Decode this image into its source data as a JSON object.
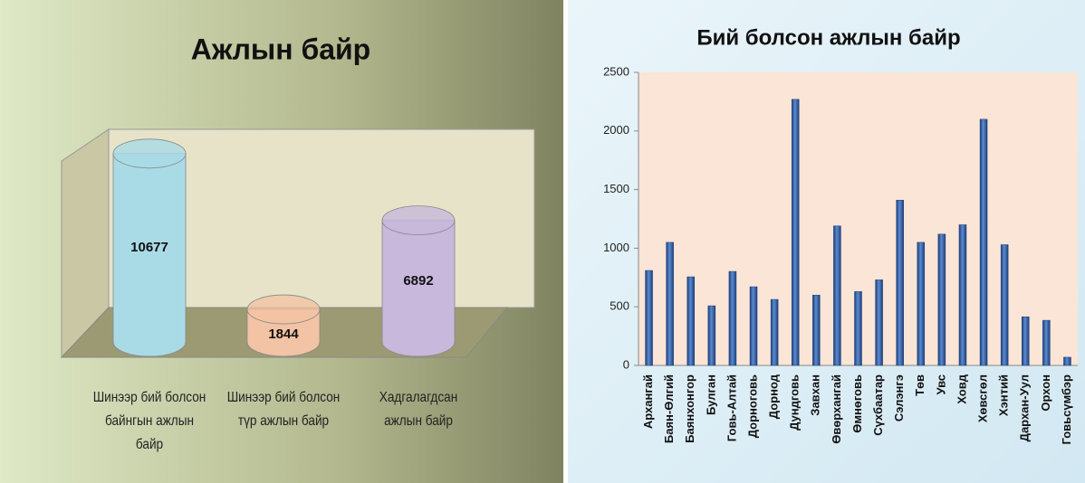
{
  "chart_data": [
    {
      "type": "cylinder",
      "title": "Ажлын байр",
      "categories": [
        "Шинээр бий болсон байнгын ажлын байр",
        "Шинээр бий болсон түр ажлын байр",
        "Хадгалагдсан ажлын байр"
      ],
      "values": [
        10677,
        1844,
        6892
      ],
      "colors": [
        "#a9dbe6",
        "#f2c3a4",
        "#c7b8dc"
      ]
    },
    {
      "type": "bar",
      "title": "Бий болсон ажлын байр",
      "categories": [
        "Архангай",
        "Баян-Өлгий",
        "Баянхонгор",
        "Булган",
        "Говь-Алтай",
        "Дорноговь",
        "Дорнод",
        "Дундговь",
        "Завхан",
        "Өвөрхангай",
        "Өмнөговь",
        "Сүхбаатар",
        "Сэлэнгэ",
        "Төв",
        "Увс",
        "Ховд",
        "Хөвсгөл",
        "Хэнтий",
        "Дархан-Уул",
        "Орхон",
        "Говьсүмбэр"
      ],
      "values": [
        810,
        1050,
        756,
        509,
        802,
        671,
        563,
        2270,
        600,
        1190,
        630,
        730,
        1410,
        1050,
        1120,
        1200,
        2100,
        1030,
        415,
        385,
        70
      ],
      "color": "#2f5da3",
      "ylim": [
        0,
        2500
      ],
      "yticks": [
        0,
        500,
        1000,
        1500,
        2000,
        2500
      ]
    }
  ]
}
